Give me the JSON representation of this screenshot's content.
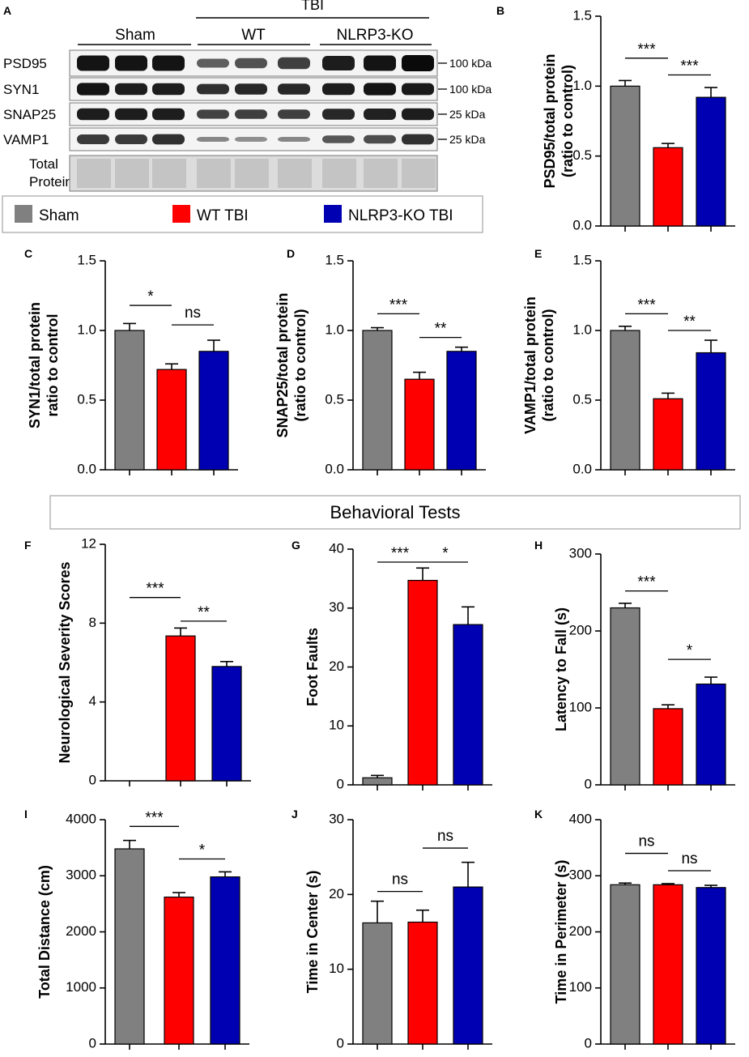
{
  "colors": {
    "sham": "#808080",
    "wt_tbi": "#ff0000",
    "ko_tbi": "#0000b3"
  },
  "blot": {
    "panel_letter": "A",
    "tbi_label": "TBI",
    "groups": [
      "Sham",
      "WT",
      "NLRP3-KO"
    ],
    "rows": [
      {
        "label": "PSD95",
        "kda": "100 kDa",
        "intensity": [
          0.95,
          0.95,
          0.95,
          0.55,
          0.62,
          0.72,
          0.9,
          0.95,
          1.0
        ]
      },
      {
        "label": "SYN1",
        "kda": "100 kDa",
        "intensity": [
          0.95,
          0.9,
          0.9,
          0.8,
          0.85,
          0.85,
          0.9,
          0.95,
          0.92
        ]
      },
      {
        "label": "SNAP25",
        "kda": "25 kDa",
        "intensity": [
          0.9,
          0.9,
          0.9,
          0.7,
          0.72,
          0.72,
          0.85,
          0.88,
          0.9
        ]
      },
      {
        "label": "VAMP1",
        "kda": "25 kDa",
        "intensity": [
          0.75,
          0.75,
          0.8,
          0.35,
          0.3,
          0.35,
          0.6,
          0.65,
          0.8
        ]
      },
      {
        "label": "Total\nProtein",
        "kda": "",
        "intensity": [
          0.2,
          0.2,
          0.2,
          0.2,
          0.2,
          0.2,
          0.2,
          0.2,
          0.2
        ]
      }
    ]
  },
  "legend": {
    "items": [
      "Sham",
      "WT TBI",
      "NLRP3-KO TBI"
    ]
  },
  "section_title": "Behavioral Tests",
  "chart_data": [
    {
      "id": "B",
      "type": "bar",
      "ylabel": "PSD95/total protein\n(ratio to control)",
      "ylim": [
        0,
        1.5
      ],
      "ticks": [
        "0.0",
        "0.5",
        "1.0",
        "1.5"
      ],
      "tick_values": [
        0,
        0.5,
        1.0,
        1.5
      ],
      "categories": [
        "Sham",
        "WT TBI",
        "NLRP3-KO TBI"
      ],
      "values": [
        1.0,
        0.56,
        0.92
      ],
      "errors": [
        0.04,
        0.03,
        0.07
      ],
      "significance": [
        {
          "from": 0,
          "to": 1,
          "label": "***",
          "y": 1.2
        },
        {
          "from": 1,
          "to": 2,
          "label": "***",
          "y": 1.08
        }
      ]
    },
    {
      "id": "C",
      "type": "bar",
      "ylabel": "SYN1/total protein\nratio to control",
      "ylim": [
        0,
        1.5
      ],
      "ticks": [
        "0.0",
        "0.5",
        "1.0",
        "1.5"
      ],
      "tick_values": [
        0,
        0.5,
        1.0,
        1.5
      ],
      "categories": [
        "Sham",
        "WT TBI",
        "NLRP3-KO TBI"
      ],
      "values": [
        1.0,
        0.72,
        0.85
      ],
      "errors": [
        0.05,
        0.04,
        0.08
      ],
      "significance": [
        {
          "from": 0,
          "to": 1,
          "label": "*",
          "y": 1.18
        },
        {
          "from": 1,
          "to": 2,
          "label": "ns",
          "y": 1.04
        }
      ]
    },
    {
      "id": "D",
      "type": "bar",
      "ylabel": "SNAP25/total protein\n(ratio to control)",
      "ylim": [
        0,
        1.5
      ],
      "ticks": [
        "0.0",
        "0.5",
        "1.0",
        "1.5"
      ],
      "tick_values": [
        0,
        0.5,
        1.0,
        1.5
      ],
      "categories": [
        "Sham",
        "WT TBI",
        "NLRP3-KO TBI"
      ],
      "values": [
        1.0,
        0.65,
        0.85
      ],
      "errors": [
        0.02,
        0.05,
        0.03
      ],
      "significance": [
        {
          "from": 0,
          "to": 1,
          "label": "***",
          "y": 1.12
        },
        {
          "from": 1,
          "to": 2,
          "label": "**",
          "y": 0.95
        }
      ]
    },
    {
      "id": "E",
      "type": "bar",
      "ylabel": "VAMP1/total protein\n(ratio to control)",
      "ylim": [
        0,
        1.5
      ],
      "ticks": [
        "0.0",
        "0.5",
        "1.0",
        "1.5"
      ],
      "tick_values": [
        0,
        0.5,
        1.0,
        1.5
      ],
      "categories": [
        "Sham",
        "WT TBI",
        "NLRP3-KO TBI"
      ],
      "values": [
        1.0,
        0.51,
        0.84
      ],
      "errors": [
        0.03,
        0.04,
        0.09
      ],
      "significance": [
        {
          "from": 0,
          "to": 1,
          "label": "***",
          "y": 1.12
        },
        {
          "from": 1,
          "to": 2,
          "label": "**",
          "y": 1.0
        }
      ]
    },
    {
      "id": "F",
      "type": "bar",
      "ylabel": "Neurological Severity Scores",
      "ylim": [
        0,
        12
      ],
      "ticks": [
        "0",
        "4",
        "8",
        "12"
      ],
      "tick_values": [
        0,
        4,
        8,
        12
      ],
      "categories": [
        "Sham",
        "WT TBI",
        "NLRP3-KO TBI"
      ],
      "values": [
        0,
        7.35,
        5.8
      ],
      "errors": [
        0,
        0.4,
        0.25
      ],
      "significance": [
        {
          "from": 0,
          "to": 1,
          "label": "***",
          "y": 9.3
        },
        {
          "from": 1,
          "to": 2,
          "label": "**",
          "y": 8.1
        }
      ]
    },
    {
      "id": "G",
      "type": "bar",
      "ylabel": "Foot Faults",
      "ylim": [
        0,
        40
      ],
      "ticks": [
        "0",
        "10",
        "20",
        "30",
        "40"
      ],
      "tick_values": [
        0,
        10,
        20,
        30,
        40
      ],
      "categories": [
        "Sham",
        "WT TBI",
        "NLRP3-KO TBI"
      ],
      "values": [
        1.2,
        34.7,
        27.2
      ],
      "errors": [
        0.4,
        2.1,
        3.0
      ],
      "significance": [
        {
          "from": 0,
          "to": 1,
          "label": "***",
          "y": 37.8
        },
        {
          "from": 1,
          "to": 2,
          "label": "*",
          "y": 37.8
        }
      ]
    },
    {
      "id": "H",
      "type": "bar",
      "ylabel": "Latency to Fall (s)",
      "ylim": [
        0,
        300
      ],
      "ticks": [
        "0",
        "100",
        "200",
        "300"
      ],
      "tick_values": [
        0,
        100,
        200,
        300
      ],
      "categories": [
        "Sham",
        "WT TBI",
        "NLRP3-KO TBI"
      ],
      "values": [
        230,
        99,
        131
      ],
      "errors": [
        6,
        5,
        9
      ],
      "significance": [
        {
          "from": 0,
          "to": 1,
          "label": "***",
          "y": 252
        },
        {
          "from": 1,
          "to": 2,
          "label": "*",
          "y": 163
        }
      ]
    },
    {
      "id": "I",
      "type": "bar",
      "ylabel": "Total Distance (cm)",
      "ylim": [
        0,
        4000
      ],
      "ticks": [
        "0",
        "1000",
        "2000",
        "3000",
        "4000"
      ],
      "tick_values": [
        0,
        1000,
        2000,
        3000,
        4000
      ],
      "categories": [
        "Sham",
        "WT TBI",
        "NLRP3-KO TBI"
      ],
      "values": [
        3480,
        2620,
        2980
      ],
      "errors": [
        150,
        80,
        90
      ],
      "significance": [
        {
          "from": 0,
          "to": 1,
          "label": "***",
          "y": 3880
        },
        {
          "from": 1,
          "to": 2,
          "label": "*",
          "y": 3300
        }
      ]
    },
    {
      "id": "J",
      "type": "bar",
      "ylabel": "Time in Center (s)",
      "ylim": [
        0,
        30
      ],
      "ticks": [
        "0",
        "10",
        "20",
        "30"
      ],
      "tick_values": [
        0,
        10,
        20,
        30
      ],
      "categories": [
        "Sham",
        "WT TBI",
        "NLRP3-KO TBI"
      ],
      "values": [
        16.2,
        16.3,
        21.0
      ],
      "errors": [
        2.9,
        1.6,
        3.3
      ],
      "significance": [
        {
          "from": 0,
          "to": 1,
          "label": "ns",
          "y": 20.4
        },
        {
          "from": 1,
          "to": 2,
          "label": "ns",
          "y": 26.2
        }
      ]
    },
    {
      "id": "K",
      "type": "bar",
      "ylabel": "Time in Perimeter (s)",
      "ylim": [
        0,
        400
      ],
      "ticks": [
        "0",
        "100",
        "200",
        "300",
        "400"
      ],
      "tick_values": [
        0,
        100,
        200,
        300,
        400
      ],
      "categories": [
        "Sham",
        "WT TBI",
        "NLRP3-KO TBI"
      ],
      "values": [
        284,
        284,
        279
      ],
      "errors": [
        3,
        2,
        4
      ],
      "significance": [
        {
          "from": 0,
          "to": 1,
          "label": "ns",
          "y": 340
        },
        {
          "from": 1,
          "to": 2,
          "label": "ns",
          "y": 309
        }
      ]
    }
  ]
}
